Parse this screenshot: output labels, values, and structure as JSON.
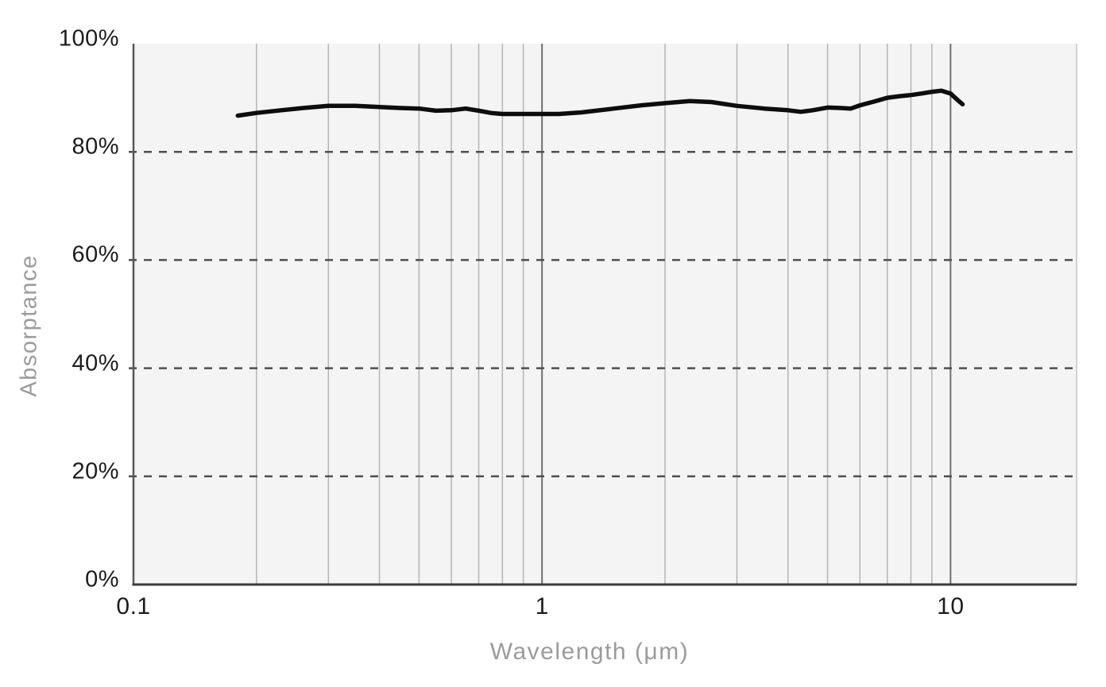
{
  "chart_data": {
    "type": "line",
    "title": "",
    "xlabel": "Wavelength (μm)",
    "ylabel": "Absorptance",
    "x_scale": "log",
    "x_range": [
      0.1,
      20.35
    ],
    "y_range": [
      0,
      100
    ],
    "grid": true,
    "legend": "none",
    "x_ticks": [
      {
        "value": 0.1,
        "label": "0.1"
      },
      {
        "value": 1,
        "label": "1"
      },
      {
        "value": 10,
        "label": "10"
      }
    ],
    "y_ticks": [
      {
        "value": 0,
        "label": "0%"
      },
      {
        "value": 20,
        "label": "20%"
      },
      {
        "value": 40,
        "label": "40%"
      },
      {
        "value": 60,
        "label": "60%"
      },
      {
        "value": 80,
        "label": "80%"
      },
      {
        "value": 100,
        "label": "100%"
      }
    ],
    "minor_gridlines_x": [
      0.2,
      0.3,
      0.4,
      0.5,
      0.6,
      0.7,
      0.8,
      0.9,
      2,
      3,
      4,
      5,
      6,
      7,
      8,
      9
    ],
    "major_gridlines_x": [
      1,
      10
    ],
    "dashed_gridlines_y": [
      20,
      40,
      60,
      80
    ],
    "series": [
      {
        "name": "absorptance",
        "color": "#0d0d0d",
        "points": [
          [
            0.18,
            86.7
          ],
          [
            0.2,
            87.2
          ],
          [
            0.23,
            87.7
          ],
          [
            0.26,
            88.1
          ],
          [
            0.3,
            88.5
          ],
          [
            0.35,
            88.5
          ],
          [
            0.4,
            88.3
          ],
          [
            0.45,
            88.1
          ],
          [
            0.5,
            88.0
          ],
          [
            0.55,
            87.6
          ],
          [
            0.6,
            87.7
          ],
          [
            0.65,
            88.0
          ],
          [
            0.7,
            87.6
          ],
          [
            0.75,
            87.2
          ],
          [
            0.8,
            87.0
          ],
          [
            0.9,
            87.0
          ],
          [
            1.0,
            87.0
          ],
          [
            1.1,
            87.0
          ],
          [
            1.25,
            87.3
          ],
          [
            1.5,
            88.0
          ],
          [
            1.75,
            88.6
          ],
          [
            2.0,
            89.0
          ],
          [
            2.3,
            89.4
          ],
          [
            2.6,
            89.2
          ],
          [
            3.0,
            88.5
          ],
          [
            3.5,
            88.0
          ],
          [
            4.0,
            87.7
          ],
          [
            4.3,
            87.4
          ],
          [
            4.6,
            87.7
          ],
          [
            5.0,
            88.2
          ],
          [
            5.4,
            88.1
          ],
          [
            5.7,
            88.0
          ],
          [
            6.0,
            88.6
          ],
          [
            6.5,
            89.3
          ],
          [
            7.0,
            90.0
          ],
          [
            7.5,
            90.3
          ],
          [
            8.0,
            90.5
          ],
          [
            8.5,
            90.8
          ],
          [
            9.0,
            91.1
          ],
          [
            9.5,
            91.3
          ],
          [
            10.0,
            90.8
          ],
          [
            10.4,
            89.6
          ],
          [
            10.7,
            88.8
          ]
        ]
      }
    ],
    "colors": {
      "plot_background": "#f4f4f5",
      "minor_gridline": "#b5b5b5",
      "major_gridline": "#6f6f6f",
      "dashed_gridline": "#4f4f4f",
      "left_spine": "#565656",
      "bottom_spine": "#3a3a3a",
      "right_spine": "#c4c4c4",
      "curve": "#0d0d0d",
      "tick_label": "#1c1c1c",
      "axis_title": "#9b9b9b"
    }
  }
}
